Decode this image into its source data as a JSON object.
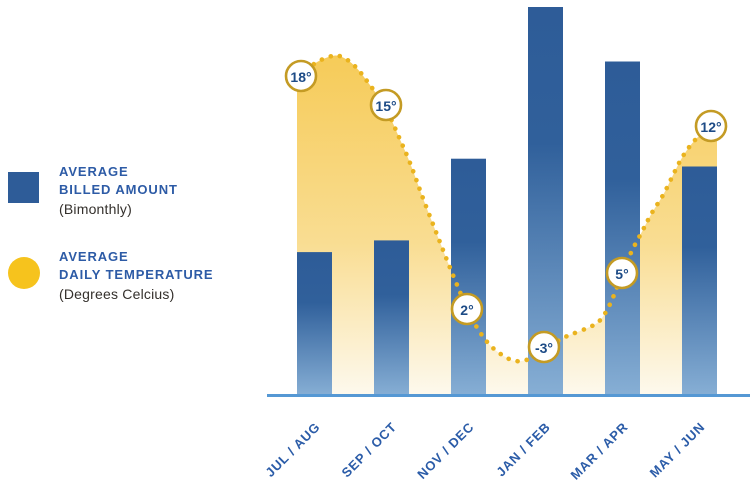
{
  "legend": {
    "billed": {
      "line1": "AVERAGE",
      "line2": "BILLED AMOUNT",
      "line3": "(Bimonthly)"
    },
    "temperature": {
      "line1": "AVERAGE",
      "line2": "DAILY TEMPERATURE",
      "line3": "(Degrees Celcius)"
    }
  },
  "colors": {
    "bar_top": "#2e5c98",
    "bar_bottom": "#87afd5",
    "legend_square": "#2e5c98",
    "legend_circle": "#f6c31d",
    "area_top": "#f6cb58",
    "area_bottom": "#fdf9ee",
    "dotted_line": "#eab31e",
    "point_circle_border": "#c49b24",
    "point_circle_fill": "#ffffff",
    "point_text": "#1d4b86",
    "axis_line": "#5598d4",
    "month_label": "#2b5ca8",
    "legend_heading": "#2d5ba6",
    "legend_subtext": "#34302c"
  },
  "chart_data": {
    "type": "combo (bar + dotted line with area fill)",
    "categories": [
      "JUL / AUG",
      "SEP / OCT",
      "NOV / DEC",
      "JAN / FEB",
      "MAR / APR",
      "MAY / JUN"
    ],
    "series": [
      {
        "name": "AVERAGE BILLED AMOUNT (Bimonthly)",
        "type": "bar",
        "unit": "relative height % (no value axis shown in chart)",
        "values": [
          37,
          40,
          61,
          100,
          86,
          59
        ]
      },
      {
        "name": "AVERAGE DAILY TEMPERATURE (Degrees Celcius)",
        "type": "line-dotted",
        "unit": "degrees Celsius",
        "values": [
          18,
          15,
          2,
          -3,
          5,
          12
        ],
        "point_labels": [
          "18°",
          "15°",
          "2°",
          "-3°",
          "5°",
          "12°"
        ]
      }
    ],
    "title": "",
    "xlabel": "",
    "ylabel": "",
    "value_axis": "none (unlabeled)",
    "grid": false,
    "legend_position": "left"
  }
}
